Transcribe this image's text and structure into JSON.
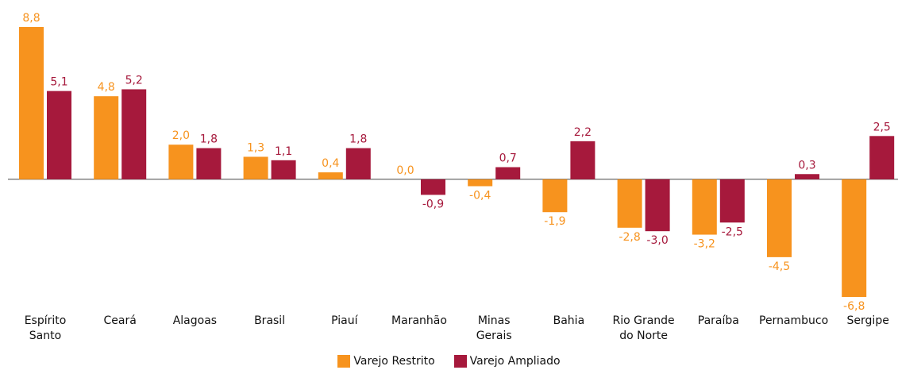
{
  "chart_data": {
    "type": "bar",
    "categories": [
      "Espírito Santo",
      "Ceará",
      "Alagoas",
      "Brasil",
      "Piauí",
      "Maranhão",
      "Minas Gerais",
      "Bahia",
      "Rio Grande do Norte",
      "Paraíba",
      "Pernambuco",
      "Sergipe"
    ],
    "series": [
      {
        "name": "Varejo Restrito",
        "color": "#f7931e",
        "values": [
          8.8,
          4.8,
          2.0,
          1.3,
          0.4,
          0.0,
          -0.4,
          -1.9,
          -2.8,
          -3.2,
          -4.5,
          -6.8
        ],
        "value_labels": [
          "8,8",
          "4,8",
          "2,0",
          "1,3",
          "0,4",
          "0,0",
          "-0,4",
          "-1,9",
          "-2,8",
          "-3,2",
          "-4,5",
          "-6,8"
        ]
      },
      {
        "name": "Varejo Ampliado",
        "color": "#a6193c",
        "values": [
          5.1,
          5.2,
          1.8,
          1.1,
          1.8,
          -0.9,
          0.7,
          2.2,
          -3.0,
          -2.5,
          0.3,
          2.5
        ],
        "value_labels": [
          "5,1",
          "5,2",
          "1,8",
          "1,1",
          "1,8",
          "-0,9",
          "0,7",
          "2,2",
          "-3,0",
          "-2,5",
          "0,3",
          "2,5"
        ]
      }
    ]
  }
}
